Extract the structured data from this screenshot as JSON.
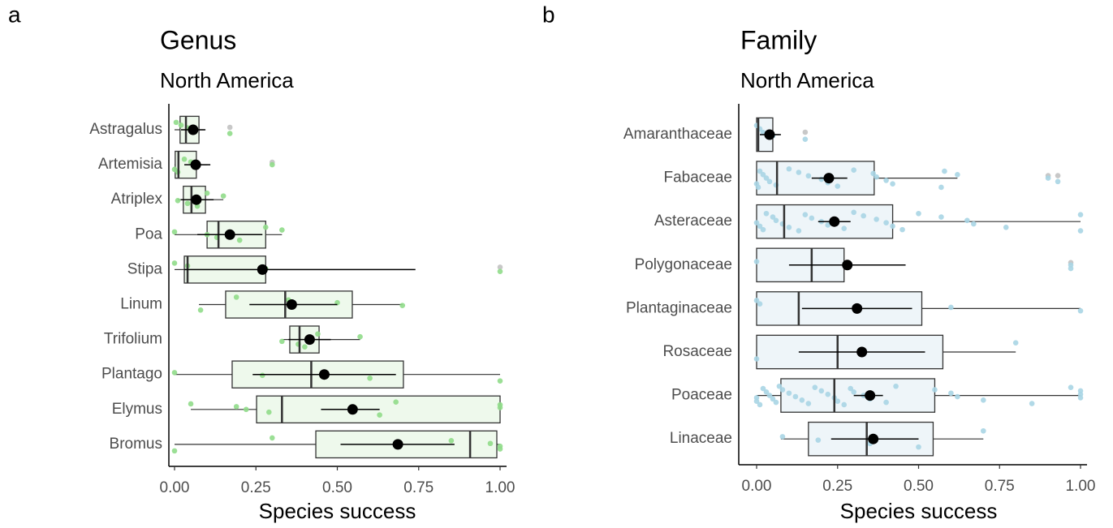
{
  "chart_data": [
    {
      "type": "box",
      "panel_label": "a",
      "title": "Genus",
      "subtitle": "North America",
      "x_label": "Species success",
      "point_color": "#90dc8a",
      "box_fill": "#eef9ec",
      "outlier_color": "#c8c8c8",
      "xlim": [
        0,
        1
      ],
      "xticks": [
        {
          "value": 0,
          "label": "0.00"
        },
        {
          "value": 0.25,
          "label": "0.25"
        },
        {
          "value": 0.5,
          "label": "0.50"
        },
        {
          "value": 0.75,
          "label": "0.75"
        },
        {
          "value": 1,
          "label": "1.00"
        }
      ],
      "categories": [
        "Astragalus",
        "Artemisia",
        "Atriplex",
        "Poa",
        "Stipa",
        "Linum",
        "Trifolium",
        "Plantago",
        "Elymus",
        "Bromus"
      ],
      "boxes": [
        {
          "whisker_low": 0,
          "q1": 0.017,
          "median": 0.035,
          "q3": 0.075,
          "whisker_high": 0.09,
          "mean": 0.057,
          "ci_low": 0.02,
          "ci_high": 0.095,
          "points": [
            0.005,
            0.02,
            0.04,
            0.06,
            0.17
          ],
          "outliers": [
            0.17
          ]
        },
        {
          "whisker_low": 0,
          "q1": 0.002,
          "median": 0.012,
          "q3": 0.067,
          "whisker_high": 0.1,
          "mean": 0.065,
          "ci_low": 0.03,
          "ci_high": 0.11,
          "points": [
            0,
            0.01,
            0.03,
            0.05,
            0.3
          ],
          "outliers": [
            0.3
          ]
        },
        {
          "whisker_low": 0.01,
          "q1": 0.027,
          "median": 0.052,
          "q3": 0.095,
          "whisker_high": 0.15,
          "mean": 0.067,
          "ci_low": 0.02,
          "ci_high": 0.12,
          "points": [
            0.01,
            0.04,
            0.07,
            0.1,
            0.15
          ]
        },
        {
          "whisker_low": 0,
          "q1": 0.1,
          "median": 0.135,
          "q3": 0.28,
          "whisker_high": 0.33,
          "mean": 0.17,
          "ci_low": 0.07,
          "ci_high": 0.27,
          "points": [
            0,
            0.1,
            0.13,
            0.2,
            0.28,
            0.33
          ]
        },
        {
          "whisker_low": 0,
          "q1": 0.03,
          "median": 0.04,
          "q3": 0.28,
          "whisker_high": 0.28,
          "mean": 0.27,
          "ci_low": 0.03,
          "ci_high": 0.74,
          "points": [
            0,
            0.04,
            0.28,
            1
          ],
          "outliers": [
            1
          ]
        },
        {
          "whisker_low": 0.075,
          "q1": 0.157,
          "median": 0.34,
          "q3": 0.546,
          "whisker_high": 0.7,
          "mean": 0.36,
          "ci_low": 0.23,
          "ci_high": 0.5,
          "points": [
            0.08,
            0.19,
            0.35,
            0.5,
            0.7
          ]
        },
        {
          "whisker_low": 0.33,
          "q1": 0.354,
          "median": 0.384,
          "q3": 0.444,
          "whisker_high": 0.57,
          "mean": 0.415,
          "ci_low": 0.35,
          "ci_high": 0.48,
          "points": [
            0.33,
            0.38,
            0.4,
            0.44,
            0.57
          ]
        },
        {
          "whisker_low": 0,
          "q1": 0.177,
          "median": 0.42,
          "q3": 0.703,
          "whisker_high": 1,
          "mean": 0.46,
          "ci_low": 0.24,
          "ci_high": 0.68,
          "points": [
            0,
            0.27,
            0.6,
            1
          ]
        },
        {
          "whisker_low": 0.05,
          "q1": 0.252,
          "median": 0.33,
          "q3": 1,
          "whisker_high": 1,
          "mean": 0.547,
          "ci_low": 0.45,
          "ci_high": 0.63,
          "points": [
            0.05,
            0.19,
            0.22,
            0.29,
            0.63,
            0.68,
            1,
            1
          ]
        },
        {
          "whisker_low": 0,
          "q1": 0.434,
          "median": 0.908,
          "q3": 0.99,
          "whisker_high": 1,
          "mean": 0.686,
          "ci_low": 0.51,
          "ci_high": 0.86,
          "points": [
            0,
            0.3,
            0.85,
            0.97,
            1,
            1
          ]
        }
      ]
    },
    {
      "type": "box",
      "panel_label": "b",
      "title": "Family",
      "subtitle": "North America",
      "x_label": "Species success",
      "point_color": "#a8d5e4",
      "box_fill": "#eef5f9",
      "outlier_color": "#c8c8c8",
      "xlim": [
        0,
        1
      ],
      "xticks": [
        {
          "value": 0,
          "label": "0.00"
        },
        {
          "value": 0.25,
          "label": "0.25"
        },
        {
          "value": 0.5,
          "label": "0.50"
        },
        {
          "value": 0.75,
          "label": "0.75"
        },
        {
          "value": 1,
          "label": "1.00"
        }
      ],
      "categories": [
        "Amaranthaceae",
        "Fabaceae",
        "Asteraceae",
        "Polygonaceae",
        "Plantaginaceae",
        "Rosaceae",
        "Poaceae",
        "Linaceae"
      ],
      "boxes": [
        {
          "whisker_low": 0,
          "q1": 0,
          "median": 0.005,
          "q3": 0.05,
          "whisker_high": 0.07,
          "mean": 0.04,
          "ci_low": 0.01,
          "ci_high": 0.075,
          "points": [
            0,
            0.01,
            0.02,
            0.05,
            0.15
          ],
          "outliers": [
            0.15
          ]
        },
        {
          "whisker_low": 0,
          "q1": 0,
          "median": 0.063,
          "q3": 0.363,
          "whisker_high": 0.62,
          "mean": 0.223,
          "ci_low": 0.17,
          "ci_high": 0.28,
          "points": [
            0,
            0.005,
            0.01,
            0.02,
            0.03,
            0.04,
            0.06,
            0.1,
            0.13,
            0.16,
            0.2,
            0.22,
            0.25,
            0.3,
            0.36,
            0.37,
            0.4,
            0.42,
            0.57,
            0.58,
            0.62,
            0.9,
            0.93
          ],
          "outliers": [
            0.9,
            0.93
          ]
        },
        {
          "whisker_low": 0,
          "q1": 0,
          "median": 0.085,
          "q3": 0.42,
          "whisker_high": 1,
          "mean": 0.24,
          "ci_low": 0.19,
          "ci_high": 0.29,
          "points": [
            0,
            0.01,
            0.02,
            0.03,
            0.05,
            0.06,
            0.08,
            0.1,
            0.13,
            0.15,
            0.17,
            0.2,
            0.22,
            0.27,
            0.3,
            0.33,
            0.37,
            0.4,
            0.42,
            0.45,
            0.5,
            0.57,
            0.65,
            0.67,
            0.77,
            1,
            1
          ]
        },
        {
          "whisker_low": 0,
          "q1": 0,
          "median": 0.17,
          "q3": 0.27,
          "whisker_high": 0.27,
          "mean": 0.28,
          "ci_low": 0.1,
          "ci_high": 0.46,
          "points": [
            0,
            0.97,
            0.97
          ],
          "outliers": [
            0.97
          ]
        },
        {
          "whisker_low": 0,
          "q1": 0,
          "median": 0.13,
          "q3": 0.51,
          "whisker_high": 1,
          "mean": 0.31,
          "ci_low": 0.14,
          "ci_high": 0.48,
          "points": [
            0,
            0.01,
            0.6,
            1
          ]
        },
        {
          "whisker_low": 0,
          "q1": 0,
          "median": 0.25,
          "q3": 0.575,
          "whisker_high": 0.8,
          "mean": 0.325,
          "ci_low": 0.13,
          "ci_high": 0.52,
          "points": [
            0,
            0.8
          ]
        },
        {
          "whisker_low": 0,
          "q1": 0.075,
          "median": 0.24,
          "q3": 0.55,
          "whisker_high": 1,
          "mean": 0.35,
          "ci_low": 0.3,
          "ci_high": 0.39,
          "points": [
            0,
            0,
            0.01,
            0.02,
            0.03,
            0.04,
            0.05,
            0.06,
            0.07,
            0.08,
            0.1,
            0.12,
            0.14,
            0.16,
            0.18,
            0.2,
            0.22,
            0.24,
            0.25,
            0.27,
            0.29,
            0.3,
            0.33,
            0.35,
            0.4,
            0.43,
            0.55,
            0.6,
            0.62,
            0.7,
            0.85,
            0.97,
            1,
            1,
            1
          ]
        },
        {
          "whisker_low": 0.075,
          "q1": 0.16,
          "median": 0.34,
          "q3": 0.545,
          "whisker_high": 0.7,
          "mean": 0.36,
          "ci_low": 0.23,
          "ci_high": 0.5,
          "points": [
            0.08,
            0.19,
            0.35,
            0.5,
            0.7
          ]
        }
      ]
    }
  ]
}
